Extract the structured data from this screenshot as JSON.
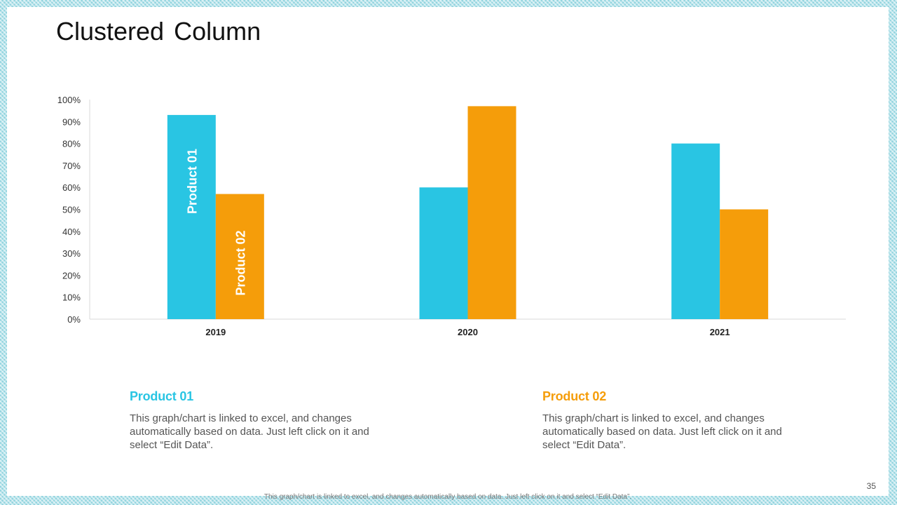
{
  "slide": {
    "title": "Clustered Column",
    "page_number": "35",
    "footer_note": "This graph/chart is linked to excel, and changes automatically based on data. Just left click on it and select “Edit Data”."
  },
  "colors": {
    "product_01": "#29c5e3",
    "product_02": "#f59d0a",
    "frame": "#8fd3de"
  },
  "legend": [
    {
      "title": "Product 01",
      "description": "This graph/chart is linked to excel, and changes automatically based on data. Just left click on it and select “Edit Data”."
    },
    {
      "title": "Product 02",
      "description": "This graph/chart is linked to excel, and changes automatically based on data. Just left click on it and select “Edit Data”."
    }
  ],
  "chart_data": {
    "type": "bar",
    "title": "",
    "xlabel": "",
    "ylabel": "",
    "categories": [
      "2019",
      "2020",
      "2021"
    ],
    "series": [
      {
        "name": "Product 01",
        "values": [
          93,
          60,
          80
        ]
      },
      {
        "name": "Product 02",
        "values": [
          57,
          97,
          50
        ]
      }
    ],
    "ylim": [
      0,
      100
    ],
    "yticks": [
      0,
      10,
      20,
      30,
      40,
      50,
      60,
      70,
      80,
      90,
      100
    ],
    "ytick_labels": [
      "0%",
      "10%",
      "20%",
      "30%",
      "40%",
      "50%",
      "60%",
      "70%",
      "80%",
      "90%",
      "100%"
    ],
    "grid": false,
    "legend": "none",
    "bar_labels_on": "2019"
  }
}
